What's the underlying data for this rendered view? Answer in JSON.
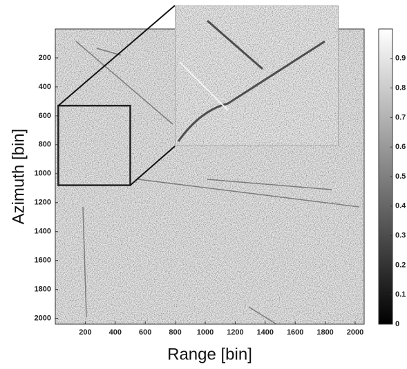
{
  "chart_data": {
    "type": "image",
    "xlabel": "Range [bin]",
    "ylabel": "Azimuth [bin]",
    "xlim": [
      0,
      2060
    ],
    "ylim": [
      0,
      2040
    ],
    "yaxis_inverted": true,
    "xticks": [
      200,
      400,
      600,
      800,
      1000,
      1200,
      1400,
      1600,
      1800,
      2000
    ],
    "yticks": [
      200,
      400,
      600,
      800,
      1000,
      1200,
      1400,
      1600,
      1800,
      2000
    ],
    "colorbar": {
      "lim": [
        0,
        1
      ],
      "ticks": [
        0,
        0.1,
        0.2,
        0.3,
        0.4,
        0.5,
        0.6,
        0.7,
        0.8,
        0.9
      ],
      "colormap": [
        "#000000",
        "#ffffff"
      ]
    },
    "zoom_region": {
      "xlim": [
        20,
        500
      ],
      "ylim": [
        530,
        1080
      ]
    }
  }
}
